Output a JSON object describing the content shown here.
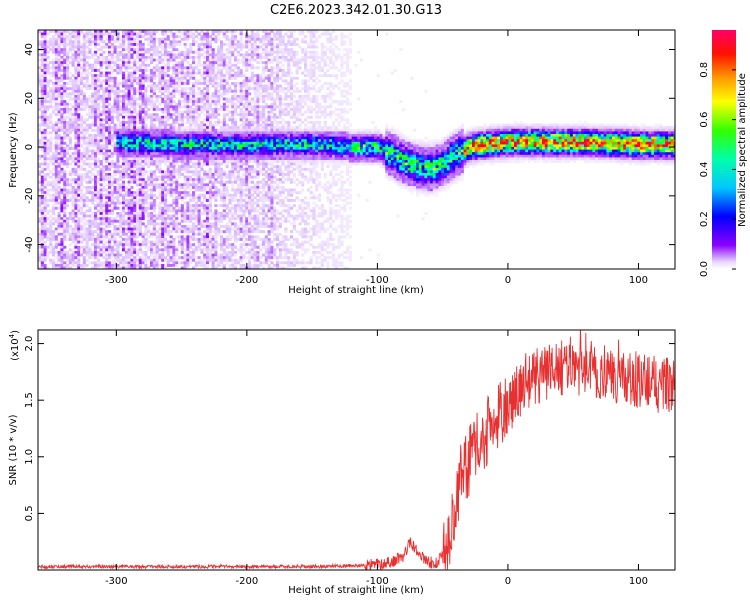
{
  "figure_title": "C2E6.2023.342.01.30.G13",
  "chart_data": [
    {
      "type": "heatmap",
      "title": "",
      "xlabel": "Height of straight line (km)",
      "ylabel": "Frequency (Hz)",
      "xlim": [
        -360,
        128
      ],
      "ylim": [
        -50,
        48
      ],
      "xticks": [
        -300,
        -200,
        -100,
        0,
        100
      ],
      "yticks": [
        -40,
        -20,
        0,
        20,
        40
      ],
      "grid": false,
      "colorbar": {
        "label": "Normalized spectral amplitude",
        "range": [
          0,
          0.96
        ],
        "ticks": [
          0.0,
          0.2,
          0.4,
          0.6,
          0.8
        ],
        "colormap": [
          "#ffffff",
          "#d9b8ff",
          "#8a00ff",
          "#0000ff",
          "#00ffff",
          "#00ff00",
          "#ffff00",
          "#ff8000",
          "#ff0000",
          "#ff0066"
        ]
      },
      "ridge": {
        "name": "",
        "x": [
          -300,
          -250,
          -200,
          -150,
          -120,
          -100,
          -90,
          -80,
          -70,
          -60,
          -50,
          -40,
          -30,
          -20,
          0,
          50,
          100,
          128
        ],
        "y": [
          2,
          1,
          1,
          1,
          0,
          0,
          -3,
          -6,
          -8,
          -9,
          -7,
          -3,
          0,
          1,
          2,
          2,
          1,
          1
        ]
      },
      "noise_region_x": [
        -360,
        -120
      ]
    },
    {
      "type": "line",
      "title": "",
      "xlabel": "Height of straight line (km)",
      "ylabel": "SNR (10 * v/v)",
      "yscale_label": "(x10",
      "yscale_exp": "4",
      "y_multiplier": 10000,
      "xlim": [
        -360,
        128
      ],
      "ylim": [
        0,
        2.12
      ],
      "xticks": [
        -300,
        -200,
        -100,
        0,
        100
      ],
      "yticks": [
        0.5,
        1.0,
        1.5,
        2.0
      ],
      "ytick_labels": [
        "0.5",
        "1.0",
        "1.5",
        "2.0"
      ],
      "grid": false,
      "series": [
        {
          "name": "",
          "color": "#e83030",
          "x": [
            -360,
            -300,
            -200,
            -150,
            -110,
            -100,
            -90,
            -80,
            -75,
            -70,
            -65,
            -60,
            -55,
            -50,
            -45,
            -40,
            -35,
            -30,
            -25,
            -20,
            -10,
            0,
            10,
            20,
            30,
            40,
            50,
            60,
            70,
            80,
            90,
            100,
            110,
            120,
            128
          ],
          "y": [
            0.03,
            0.03,
            0.03,
            0.03,
            0.04,
            0.05,
            0.07,
            0.12,
            0.25,
            0.18,
            0.1,
            0.07,
            0.06,
            0.12,
            0.3,
            0.55,
            0.9,
            0.95,
            1.05,
            1.15,
            1.3,
            1.45,
            1.6,
            1.7,
            1.75,
            1.78,
            1.8,
            1.78,
            1.75,
            1.72,
            1.7,
            1.68,
            1.65,
            1.63,
            1.62
          ]
        }
      ]
    }
  ]
}
